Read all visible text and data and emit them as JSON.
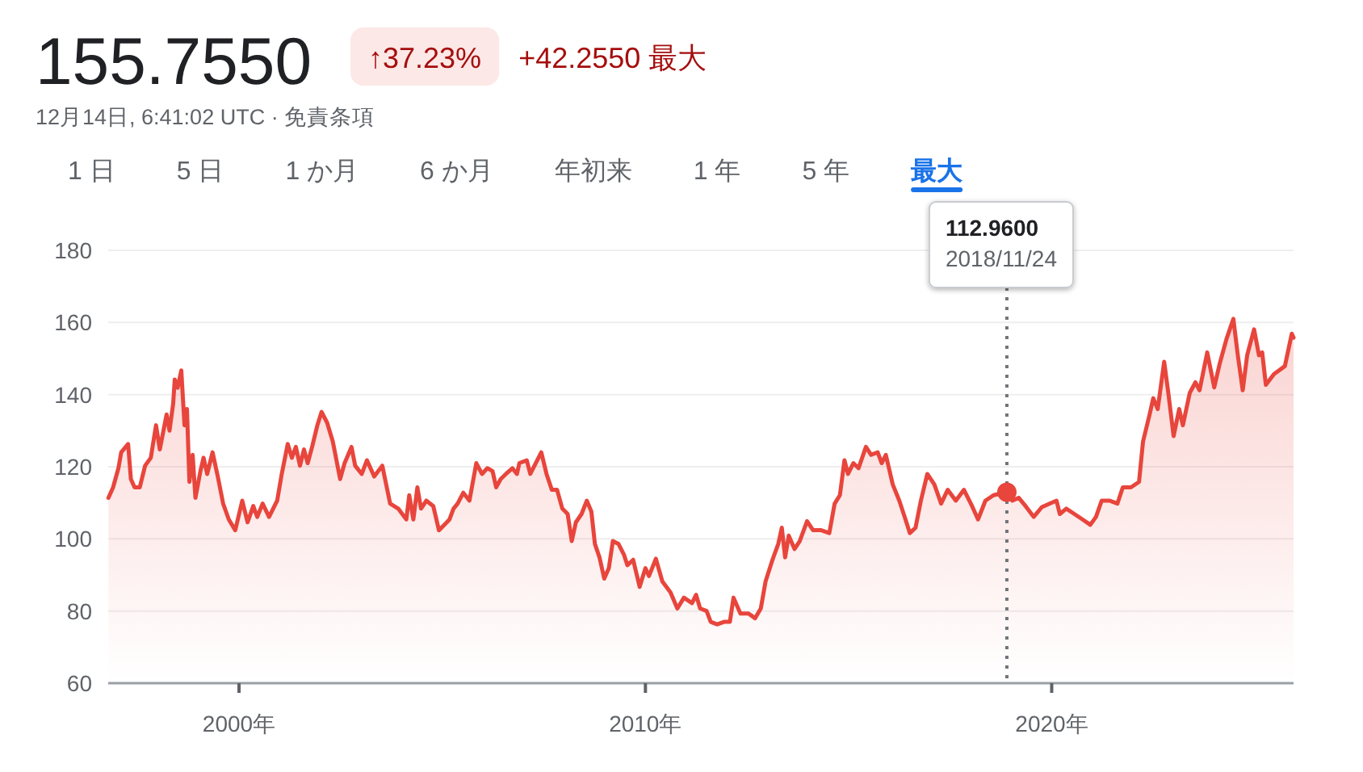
{
  "chart_data": [
    {
      "type": "other",
      "title": "155.7550",
      "subtitle": "12月14日, 6:41:02 UTC · 免責条項",
      "annotations": [
        "↑37.23%",
        "+42.2550 最大",
        "1 日",
        "5 日",
        "1 か月",
        "6 か月",
        "年初来",
        "1 年",
        "5 年",
        "最大"
      ]
    },
    {
      "type": "area",
      "x": [
        "1996-10-14",
        "1996-11-25",
        "1997-01-12",
        "1997-02-06",
        "1997-04-09",
        "1997-05-04",
        "1997-06-06",
        "1997-07-23",
        "1997-09-09",
        "1997-10-30",
        "1997-12-16",
        "1998-01-19",
        "1998-03-21",
        "1998-04-16",
        "1998-05-19",
        "1998-06-02",
        "1998-06-28",
        "1998-07-31",
        "1998-08-29",
        "1998-09-20",
        "1998-10-12",
        "1998-11-10",
        "1998-12-05",
        "1999-01-19",
        "1999-02-16",
        "1999-03-21",
        "1999-05-08",
        "1999-06-24",
        "1999-08-11",
        "1999-10-01",
        "1999-11-28",
        "2000-01-30",
        "2000-03-18",
        "2000-05-08",
        "2000-06-13",
        "2000-07-31",
        "2000-09-27",
        "2000-12-09",
        "2001-01-19",
        "2001-03-14",
        "2001-04-20",
        "2001-05-26",
        "2001-07-02",
        "2001-08-07",
        "2001-09-09",
        "2001-10-19",
        "2001-12-05",
        "2002-01-12",
        "2002-03-03",
        "2002-04-23",
        "2002-06-28",
        "2002-08-07",
        "2002-10-08",
        "2002-11-10",
        "2003-01-08",
        "2003-02-24",
        "2003-04-30",
        "2003-07-12",
        "2003-09-20",
        "2003-12-02",
        "2004-02-13",
        "2004-03-10",
        "2004-04-16",
        "2004-05-22",
        "2004-06-24",
        "2004-08-11",
        "2004-10-12",
        "2004-12-02",
        "2005-01-19",
        "2005-03-07",
        "2005-04-12",
        "2005-05-19",
        "2005-07-09",
        "2005-09-02",
        "2005-11-03",
        "2005-12-24",
        "2006-02-10",
        "2006-03-29",
        "2006-04-30",
        "2006-06-10",
        "2006-07-27",
        "2006-09-23",
        "2006-11-03",
        "2006-11-25",
        "2007-01-30",
        "2007-03-03",
        "2007-06-10",
        "2007-07-27",
        "2007-09-13",
        "2007-10-30",
        "2007-12-16",
        "2008-02-02",
        "2008-03-10",
        "2008-04-16",
        "2008-06-06",
        "2008-07-23",
        "2008-09-02",
        "2008-10-04",
        "2008-11-14",
        "2008-12-27",
        "2009-02-06",
        "2009-03-14",
        "2009-05-04",
        "2009-06-21",
        "2009-07-23",
        "2009-09-13",
        "2009-11-10",
        "2010-01-01",
        "2010-02-02",
        "2010-04-05",
        "2010-06-02",
        "2010-08-14",
        "2010-10-15",
        "2010-12-13",
        "2011-02-24",
        "2011-04-01",
        "2011-05-08",
        "2011-07-05",
        "2011-08-11",
        "2011-10-08",
        "2011-12-09",
        "2012-01-30",
        "2012-03-03",
        "2012-05-04",
        "2012-07-16",
        "2012-09-13",
        "2012-11-03",
        "2012-12-16",
        "2013-02-16",
        "2013-04-09",
        "2013-05-11",
        "2013-06-10",
        "2013-07-12",
        "2013-09-02",
        "2013-10-19",
        "2013-12-24",
        "2014-02-16",
        "2014-04-30",
        "2014-07-12",
        "2014-08-29",
        "2014-10-15",
        "2014-11-25",
        "2014-12-27",
        "2015-02-13",
        "2015-04-01",
        "2015-06-06",
        "2015-07-23",
        "2015-09-20",
        "2015-10-26",
        "2015-12-02",
        "2016-02-02",
        "2016-04-01",
        "2016-05-19",
        "2016-07-05",
        "2016-08-25",
        "2016-10-12",
        "2016-12-09",
        "2017-02-10",
        "2017-04-12",
        "2017-06-10",
        "2017-08-22",
        "2017-11-03",
        "2018-01-15",
        "2018-03-10",
        "2018-05-15",
        "2018-07-27",
        "2018-11-24",
        "2019-01-12",
        "2019-03-10",
        "2019-05-11",
        "2019-07-23",
        "2019-10-04",
        "2019-12-16",
        "2020-02-13",
        "2020-03-14",
        "2020-05-11",
        "2020-07-23",
        "2020-10-04",
        "2020-12-13",
        "2021-02-02",
        "2021-03-25",
        "2021-06-02",
        "2021-08-14",
        "2021-10-01",
        "2021-12-13",
        "2022-02-24",
        "2022-04-01",
        "2022-05-30",
        "2022-07-02",
        "2022-08-11",
        "2022-10-08",
        "2022-11-14",
        "2023-01-01",
        "2023-02-20",
        "2023-03-25",
        "2023-05-26",
        "2023-07-16",
        "2023-08-22",
        "2023-10-30",
        "2024-01-01",
        "2024-02-20",
        "2024-04-20",
        "2024-06-21",
        "2024-07-31",
        "2024-09-13",
        "2024-10-23",
        "2024-12-24",
        "2025-02-06",
        "2025-03-07",
        "2025-04-09",
        "2025-06-21",
        "2025-09-27",
        "2025-11-28",
        "2025-12-14"
      ],
      "series": [
        {
          "color": "#e8453c",
          "values": [
            111.4,
            114.3,
            119.6,
            124,
            126.3,
            116.6,
            114.3,
            114.3,
            120.3,
            122.5,
            131.5,
            124.8,
            134.5,
            130,
            137.5,
            144.2,
            141.9,
            146.7,
            131.5,
            136,
            115.8,
            123.3,
            111.4,
            118.8,
            122.5,
            118,
            124,
            117.3,
            109.8,
            105.4,
            102.4,
            110.6,
            104.6,
            109.1,
            106.1,
            109.8,
            106.1,
            110.6,
            118,
            126.3,
            122.5,
            125.5,
            120.3,
            124.8,
            121,
            125.5,
            131.5,
            135.2,
            132.2,
            127,
            116.6,
            121,
            125.5,
            120.3,
            118,
            121.8,
            117.3,
            120.3,
            109.8,
            108.4,
            105.4,
            112.1,
            105.4,
            114.3,
            108.4,
            110.6,
            109.1,
            102.4,
            103.9,
            105.4,
            108.4,
            109.8,
            112.8,
            110.6,
            121,
            118,
            119.6,
            118.8,
            114.3,
            116.6,
            118,
            119.6,
            118,
            121,
            121.8,
            118,
            124,
            118,
            113.6,
            113.6,
            108.4,
            106.9,
            99.4,
            104.6,
            106.9,
            110.6,
            107.6,
            98.6,
            94.9,
            89,
            91.9,
            99.4,
            98.6,
            95.7,
            92.7,
            94.2,
            86.7,
            91.9,
            89.7,
            94.5,
            88.2,
            85.2,
            80.7,
            83.7,
            82.2,
            84.5,
            80.7,
            80,
            77,
            76.3,
            77,
            77,
            83.7,
            79.3,
            79.3,
            78,
            80.7,
            88.2,
            94.2,
            98.6,
            103.1,
            94.9,
            100.9,
            97.2,
            99.4,
            104.9,
            102.4,
            102.4,
            101.6,
            109.8,
            112.1,
            121.8,
            118,
            121,
            119.6,
            125.5,
            123.3,
            124,
            121,
            123.3,
            115.1,
            110.6,
            106.1,
            101.6,
            103.1,
            110.6,
            118,
            115.1,
            109.8,
            113.6,
            110.6,
            113.6,
            109.1,
            105.4,
            110.6,
            112.1,
            113,
            110.6,
            111.4,
            109.1,
            106.1,
            108.8,
            109.8,
            110.6,
            106.9,
            108.4,
            106.9,
            105.4,
            103.9,
            106.1,
            110.6,
            110.6,
            109.8,
            114.3,
            114.3,
            115.8,
            127,
            134.5,
            139,
            136,
            149.1,
            140.5,
            128.5,
            136,
            131.5,
            140.5,
            143.4,
            141.2,
            151.7,
            142,
            148.7,
            155.4,
            161,
            150.9,
            141.2,
            150.9,
            158.1,
            150.9,
            151.7,
            142.7,
            145.7,
            147.9,
            156.9,
            155.8
          ]
        },
        {
          "type": "scatter",
          "x": [
            "2018-11-24"
          ],
          "color": "#e8453c",
          "values": [
            112.96
          ]
        }
      ],
      "xlim": [
        "1996-10-12",
        "2025-12-14"
      ],
      "xticks": [
        {
          "value": "2000-01-01",
          "label": "2000年"
        },
        {
          "value": "2010-01-01",
          "label": "2010年"
        },
        {
          "value": "2020-01-01",
          "label": "2020年"
        }
      ],
      "ylim": [
        60,
        180
      ],
      "yticks": [
        60,
        80,
        100,
        120,
        140,
        160,
        180
      ],
      "grid": "y",
      "ref_lines": [
        {
          "axis": "x",
          "value": "2018-11-24",
          "line_style": "dotted",
          "color": "#70757a"
        }
      ],
      "annotations": [
        "112.9600",
        "2018/11/24"
      ]
    }
  ]
}
